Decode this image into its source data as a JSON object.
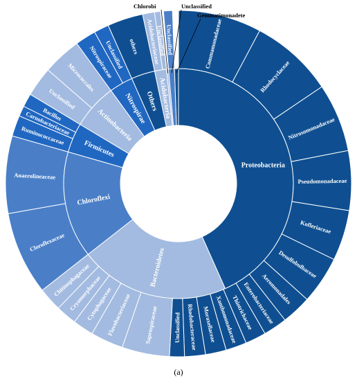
{
  "chart_data": {
    "type": "sunburst",
    "caption": "(a)",
    "inner_ring": [
      {
        "name": "Proteobacteria",
        "color": "#0f4f91"
      },
      {
        "name": "Bacteroidetes",
        "color": "#a3bbe0"
      },
      {
        "name": "Chloroflexi",
        "color": "#4a7fc8"
      },
      {
        "name": "Firmicutes",
        "color": "#2067c1"
      },
      {
        "name": "Actinobacteria",
        "color": "#a3bbe0"
      },
      {
        "name": "Nitrospirae",
        "color": "#2067c1"
      },
      {
        "name": "Others",
        "color": "#0f4f91"
      },
      {
        "name": "Acidobacteria",
        "color": "#a3bbe0"
      },
      {
        "name": "Chlorobi",
        "color": "#a3bbe0"
      },
      {
        "name": "Unclassified",
        "color": "#4a7fc8"
      },
      {
        "name": "Gemmatimonadete",
        "color": "#0f4f91"
      }
    ],
    "outer_ring": [
      {
        "name": "Commamonadaceae",
        "parent": "Proteobacteria"
      },
      {
        "name": "Rhodocyclaceae",
        "parent": "Proteobacteria"
      },
      {
        "name": "Nitrosomonadaceae",
        "parent": "Proteobacteria"
      },
      {
        "name": "Pseudomonadaceae",
        "parent": "Proteobacteria"
      },
      {
        "name": "Kofleriaceae",
        "parent": "Proteobacteria"
      },
      {
        "name": "Desulfobulbaceae",
        "parent": "Proteobacteria"
      },
      {
        "name": "Aeromonadales",
        "parent": "Proteobacteria"
      },
      {
        "name": "Enterobacteriaceae",
        "parent": "Proteobacteria"
      },
      {
        "name": "Thiotrichaceae",
        "parent": "Proteobacteria"
      },
      {
        "name": "Xanthomonadaceae",
        "parent": "Proteobacteria"
      },
      {
        "name": "Moraxellaceae",
        "parent": "Proteobacteria"
      },
      {
        "name": "Rhodobacteraceae",
        "parent": "Proteobacteria"
      },
      {
        "name": "Unclassified",
        "parent": "Proteobacteria"
      },
      {
        "name": "Saprospiraceae",
        "parent": "Bacteroidetes"
      },
      {
        "name": "Flavobacteriaceae",
        "parent": "Bacteroidetes"
      },
      {
        "name": "Cytophagaceae",
        "parent": "Bacteroidetes"
      },
      {
        "name": "Cryomorphaceae",
        "parent": "Bacteroidetes"
      },
      {
        "name": "Chitinophagaceae",
        "parent": "Bacteroidetes"
      },
      {
        "name": "Cloroflexaceae",
        "parent": "Chloroflexi"
      },
      {
        "name": "Anaerolineaceae",
        "parent": "Chloroflexi"
      },
      {
        "name": "Ruminococcaceae",
        "parent": "Firmicutes"
      },
      {
        "name": "Carnobacteriaceae",
        "parent": "Firmicutes"
      },
      {
        "name": "Bacillus",
        "parent": "Firmicutes"
      },
      {
        "name": "Unclassified",
        "parent": "Actinobacteria"
      },
      {
        "name": "Micrococcales",
        "parent": "Actinobacteria"
      },
      {
        "name": "Nitrospiraceae",
        "parent": "Nitrospirae"
      },
      {
        "name": "Unclassified",
        "parent": "Nitrospirae"
      },
      {
        "name": "others",
        "parent": "Others"
      },
      {
        "name": "Acidobacteriaceae",
        "parent": "Acidobacteria"
      },
      {
        "name": "Unclassified",
        "parent": "Acidobacteria"
      },
      {
        "name": "Unclassified",
        "parent": "Unclassified"
      }
    ]
  }
}
